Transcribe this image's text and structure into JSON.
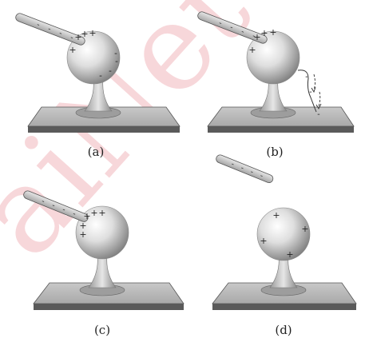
{
  "panels": [
    {
      "id": "a",
      "label": "(a)",
      "rod": true,
      "rod_touching": false,
      "sphere_charges": [
        {
          "sign": "+",
          "region": "upper-left"
        },
        {
          "sign": "+",
          "region": "upper-left"
        },
        {
          "sign": "+",
          "region": "upper-left"
        },
        {
          "sign": "+",
          "region": "left"
        },
        {
          "sign": "-",
          "region": "right"
        },
        {
          "sign": "-",
          "region": "right"
        },
        {
          "sign": "-",
          "region": "right"
        },
        {
          "sign": "-",
          "region": "lower-right"
        }
      ],
      "ground_wire": false
    },
    {
      "id": "b",
      "label": "(b)",
      "rod": true,
      "rod_touching": false,
      "sphere_charges": [
        {
          "sign": "+",
          "region": "upper-left"
        },
        {
          "sign": "+",
          "region": "upper-left"
        },
        {
          "sign": "+",
          "region": "upper-left"
        },
        {
          "sign": "+",
          "region": "left"
        }
      ],
      "ground_wire": true,
      "ground_wire_charges": [
        "-",
        "-",
        "-"
      ]
    },
    {
      "id": "c",
      "label": "(c)",
      "rod": true,
      "rod_touching": true,
      "sphere_charges": [
        {
          "sign": "+",
          "region": "upper-left"
        },
        {
          "sign": "+",
          "region": "upper-left"
        },
        {
          "sign": "+",
          "region": "upper-left"
        },
        {
          "sign": "+",
          "region": "left"
        },
        {
          "sign": "+",
          "region": "left"
        }
      ],
      "ground_wire": false
    },
    {
      "id": "d",
      "label": "(d)",
      "rod": true,
      "rod_touching": false,
      "rod_separate": true,
      "sphere_charges": [
        {
          "sign": "+",
          "region": "top"
        },
        {
          "sign": "+",
          "region": "right"
        },
        {
          "sign": "+",
          "region": "left"
        },
        {
          "sign": "+",
          "region": "bottom-right"
        }
      ],
      "ground_wire": false
    }
  ],
  "rod_charge_sign": "-",
  "watermark": "aiNet",
  "colors": {
    "sphere_light": "#f5f5f5",
    "sphere_dark": "#8a8a8a",
    "base_top": "#b8b8b8",
    "base_side": "#5a5a5a",
    "rod": "#c9c9c9",
    "watermark": "#f4c9cc"
  }
}
